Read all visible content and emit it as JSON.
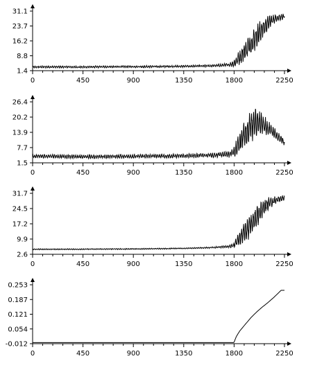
{
  "chart_data": [
    {
      "type": "line",
      "x_ticks": [
        "0",
        "450",
        "900",
        "1350",
        "1800",
        "2250"
      ],
      "y_ticks": [
        "1.4",
        "8.8",
        "16.2",
        "23.7",
        "31.1"
      ],
      "xlim": [
        0,
        2250
      ],
      "ylim": [
        1.4,
        31.1
      ],
      "grid": false,
      "series": [
        {
          "x": [
            0,
            200,
            400,
            600,
            800,
            1000,
            1200,
            1400,
            1600,
            1750,
            1800,
            1850,
            1900,
            1950,
            2000,
            2050,
            2100,
            2150,
            2200,
            2250
          ],
          "y": [
            3.2,
            3.3,
            3.2,
            3.3,
            3.4,
            3.4,
            3.5,
            3.6,
            3.8,
            4.3,
            5.0,
            8.0,
            11.5,
            15.0,
            18.5,
            22.0,
            25.0,
            27.0,
            28.0,
            28.5
          ],
          "amplitude": [
            0.6,
            0.6,
            0.6,
            0.6,
            0.6,
            0.6,
            0.6,
            0.6,
            0.7,
            0.9,
            2.0,
            4.0,
            5.5,
            6.5,
            6.5,
            5.5,
            4.0,
            2.5,
            1.8,
            1.5
          ]
        }
      ]
    },
    {
      "type": "line",
      "x_ticks": [
        "0",
        "450",
        "900",
        "1350",
        "1800",
        "2250"
      ],
      "y_ticks": [
        "1.5",
        "7.7",
        "13.9",
        "20.2",
        "26.4"
      ],
      "xlim": [
        0,
        2250
      ],
      "ylim": [
        1.5,
        26.4
      ],
      "grid": false,
      "series": [
        {
          "x": [
            0,
            200,
            400,
            600,
            800,
            1000,
            1200,
            1400,
            1600,
            1750,
            1800,
            1850,
            1900,
            1950,
            2000,
            2050,
            2100,
            2150,
            2200,
            2250
          ],
          "y": [
            4.2,
            4.1,
            4.0,
            4.0,
            4.1,
            4.2,
            4.3,
            4.4,
            4.6,
            5.0,
            6.0,
            9.5,
            13.5,
            16.5,
            17.5,
            17.5,
            16.0,
            14.0,
            12.0,
            10.0
          ],
          "amplitude": [
            0.8,
            0.9,
            0.9,
            0.9,
            0.9,
            0.9,
            0.9,
            0.9,
            1.0,
            1.4,
            2.5,
            5.0,
            6.5,
            7.0,
            6.5,
            5.0,
            3.5,
            2.5,
            2.0,
            1.5
          ]
        }
      ]
    },
    {
      "type": "line",
      "x_ticks": [
        "0",
        "450",
        "900",
        "1350",
        "1800",
        "2250"
      ],
      "y_ticks": [
        "2.6",
        "9.9",
        "17.2",
        "24.5",
        "31.7"
      ],
      "xlim": [
        0,
        2250
      ],
      "ylim": [
        2.6,
        31.7
      ],
      "grid": false,
      "series": [
        {
          "x": [
            0,
            200,
            400,
            600,
            800,
            1000,
            1200,
            1400,
            1600,
            1750,
            1800,
            1850,
            1900,
            1950,
            2000,
            2050,
            2100,
            2150,
            2200,
            2250
          ],
          "y": [
            5.0,
            5.0,
            5.0,
            5.1,
            5.1,
            5.2,
            5.3,
            5.5,
            5.8,
            6.3,
            7.0,
            10.0,
            13.5,
            17.0,
            20.5,
            24.0,
            26.5,
            28.0,
            29.0,
            29.5
          ],
          "amplitude": [
            0.3,
            0.3,
            0.3,
            0.3,
            0.3,
            0.3,
            0.3,
            0.3,
            0.4,
            0.6,
            1.5,
            4.0,
            5.5,
            6.5,
            6.0,
            5.0,
            3.5,
            2.5,
            1.8,
            1.5
          ]
        }
      ]
    },
    {
      "type": "line",
      "x_ticks": [
        "0",
        "450",
        "900",
        "1350",
        "1800",
        "2250"
      ],
      "y_ticks": [
        "-0.012",
        "0.054",
        "0.121",
        "0.187",
        "0.253"
      ],
      "xlim": [
        0,
        2250
      ],
      "ylim": [
        -0.012,
        0.253
      ],
      "grid": false,
      "series": [
        {
          "x": [
            0,
            1750,
            1795,
            1800,
            1820,
            1850,
            1900,
            1950,
            2000,
            2050,
            2100,
            2150,
            2200,
            2220,
            2250
          ],
          "y": [
            -0.007,
            -0.007,
            -0.007,
            -0.005,
            0.02,
            0.045,
            0.075,
            0.105,
            0.13,
            0.152,
            0.172,
            0.194,
            0.218,
            0.228,
            0.228
          ],
          "amplitude": [
            0,
            0,
            0,
            0,
            0,
            0,
            0,
            0,
            0,
            0,
            0,
            0,
            0,
            0,
            0
          ]
        }
      ]
    }
  ]
}
